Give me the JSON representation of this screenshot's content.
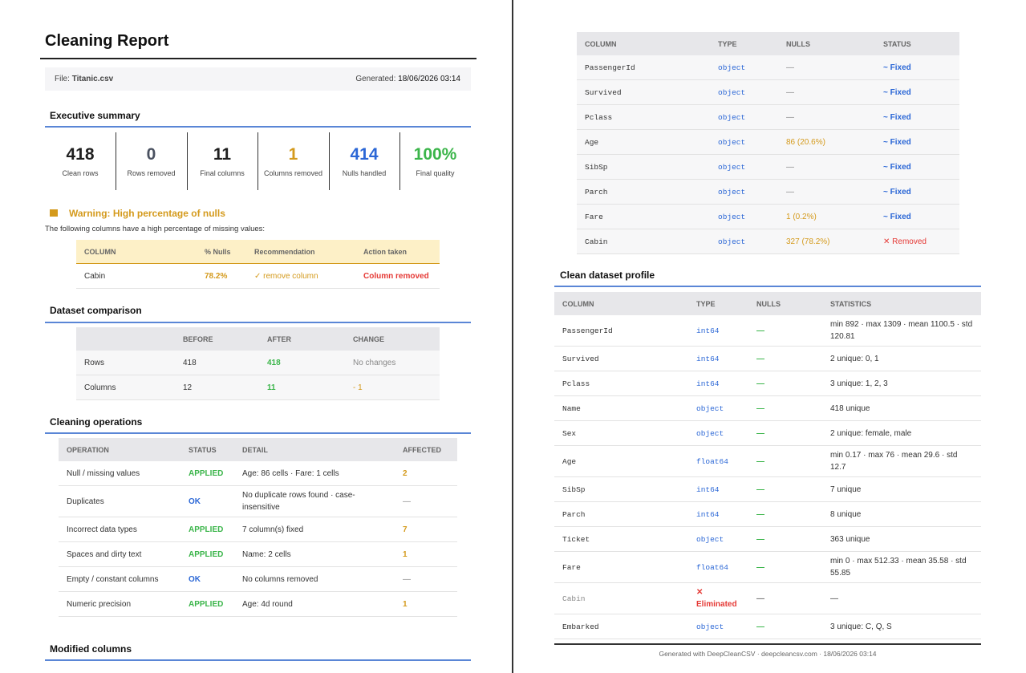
{
  "left_page": {
    "title": "Cleaning Report",
    "file_label": "File:",
    "file_name": "Titanic.csv",
    "generated_label": "Generated:",
    "generated_value": "18/06/2026 03:14",
    "summary": {
      "heading": "Executive summary",
      "stats": [
        {
          "value": 418,
          "label": "Clean rows",
          "color": "#1f1f1f"
        },
        {
          "value": 0,
          "label": "Rows removed",
          "color": "#4a5160"
        },
        {
          "value": 11,
          "label": "Final columns",
          "color": "#1f1f1f"
        },
        {
          "value": 1,
          "label": "Columns removed",
          "color": "#d49a1c"
        },
        {
          "value": 414,
          "label": "Nulls handled",
          "color": "#2b67d6"
        },
        {
          "value": "100%",
          "label": "Final quality",
          "color": "#3bb54a"
        }
      ]
    },
    "warning": {
      "title": "Warning: High percentage of nulls",
      "text": "The following columns have a high percentage of missing values:",
      "table": {
        "headers": [
          "COLUMN",
          "% Nulls",
          "Recommendation",
          "Action taken"
        ],
        "rows": [
          [
            "Cabin",
            "78.2%",
            "✓ remove column",
            "Column removed"
          ]
        ]
      }
    },
    "comparison": {
      "heading": "Dataset comparison",
      "headers": [
        "BEFORE",
        "AFTER",
        "CHANGE"
      ],
      "rows": [
        [
          "Rows",
          418,
          418,
          "No changes"
        ],
        [
          "Columns",
          12,
          11,
          "- 1"
        ]
      ]
    },
    "operations": {
      "heading": "Cleaning operations",
      "headers": [
        "OPERATION",
        "STATUS",
        "DETAIL",
        "AFFECTED"
      ],
      "rows": [
        [
          "Null / missing values",
          "APPLIED",
          "Age: 86 cells · Fare: 1 cells",
          2
        ],
        [
          "Duplicates",
          "OK",
          "No duplicate rows found · case-insensitive",
          "—"
        ],
        [
          "Incorrect data types",
          "APPLIED",
          "7 column(s) fixed",
          7
        ],
        [
          "Spaces and dirty text",
          "APPLIED",
          "Name: 2 cells",
          1
        ],
        [
          "Empty / constant columns",
          "OK",
          "No columns removed",
          "—"
        ],
        [
          "Numeric precision",
          "APPLIED",
          "Age: 4d round",
          1
        ]
      ]
    },
    "modified_heading": "Modified columns"
  },
  "right_page": {
    "modified_table": {
      "headers": [
        "COLUMN",
        "TYPE",
        "NULLS",
        "STATUS"
      ],
      "rows": [
        [
          "PassengerId",
          "object",
          "—",
          "~ Fixed"
        ],
        [
          "Survived",
          "object",
          "—",
          "~ Fixed"
        ],
        [
          "Pclass",
          "object",
          "—",
          "~ Fixed"
        ],
        [
          "Age",
          "object",
          "86 (20.6%)",
          "~ Fixed"
        ],
        [
          "SibSp",
          "object",
          "—",
          "~ Fixed"
        ],
        [
          "Parch",
          "object",
          "—",
          "~ Fixed"
        ],
        [
          "Fare",
          "object",
          "1 (0.2%)",
          "~ Fixed"
        ],
        [
          "Cabin",
          "object",
          "327 (78.2%)",
          "✕ Removed"
        ]
      ]
    },
    "profile": {
      "heading": "Clean dataset profile",
      "headers": [
        "COLUMN",
        "TYPE",
        "NULLS",
        "STATISTICS"
      ],
      "rows": [
        [
          "PassengerId",
          "int64",
          "—",
          "min 892 · max 1309 · mean 1100.5 · std 120.81"
        ],
        [
          "Survived",
          "int64",
          "—",
          "2 unique: 0, 1"
        ],
        [
          "Pclass",
          "int64",
          "—",
          "3 unique: 1, 2, 3"
        ],
        [
          "Name",
          "object",
          "—",
          "418 unique"
        ],
        [
          "Sex",
          "object",
          "—",
          "2 unique: female, male"
        ],
        [
          "Age",
          "float64",
          "—",
          "min 0.17 · max 76 · mean 29.6 · std 12.7"
        ],
        [
          "SibSp",
          "int64",
          "—",
          "7 unique"
        ],
        [
          "Parch",
          "int64",
          "—",
          "8 unique"
        ],
        [
          "Ticket",
          "object",
          "—",
          "363 unique"
        ],
        [
          "Fare",
          "float64",
          "—",
          "min 0 · max 512.33 · mean 35.58 · std 55.85"
        ],
        [
          "Cabin",
          "✕ Eliminated",
          "—",
          "—"
        ],
        [
          "Embarked",
          "object",
          "—",
          "3 unique: C, Q, S"
        ]
      ]
    },
    "footer": "Generated with DeepCleanCSV · deepcleancsv.com · 18/06/2026 03:14"
  }
}
